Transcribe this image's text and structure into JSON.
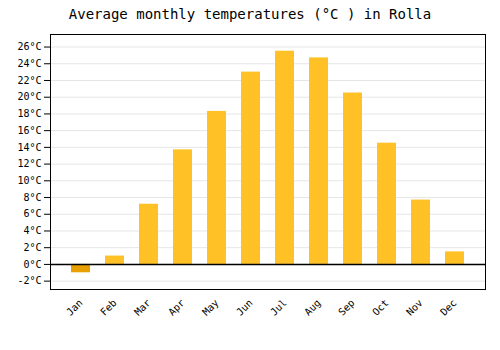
{
  "chart_data": {
    "type": "bar",
    "title": "Average monthly temperatures (°C ) in Rolla",
    "categories": [
      "Jan",
      "Feb",
      "Mar",
      "Apr",
      "May",
      "Jun",
      "Jul",
      "Aug",
      "Sep",
      "Oct",
      "Nov",
      "Dec"
    ],
    "values": [
      -1.0,
      1.0,
      7.2,
      13.7,
      18.3,
      23.0,
      25.5,
      24.7,
      20.5,
      14.5,
      7.7,
      1.5
    ],
    "colors": [
      "#E8A000",
      "#FFC125",
      "#FFC125",
      "#FFC125",
      "#FFC125",
      "#FFC125",
      "#FFC125",
      "#FFC125",
      "#FFC125",
      "#FFC125",
      "#FFC125",
      "#FFC125"
    ],
    "ylim": [
      -3.0,
      27.5
    ],
    "yticks": [
      {
        "value": -2,
        "label": "-2°C"
      },
      {
        "value": 0,
        "label": "0°C"
      },
      {
        "value": 2,
        "label": "2°C"
      },
      {
        "value": 4,
        "label": "4°C"
      },
      {
        "value": 6,
        "label": "6°C"
      },
      {
        "value": 8,
        "label": "8°C"
      },
      {
        "value": 10,
        "label": "10°C"
      },
      {
        "value": 12,
        "label": "12°C"
      },
      {
        "value": 14,
        "label": "14°C"
      },
      {
        "value": 16,
        "label": "16°C"
      },
      {
        "value": 18,
        "label": "18°C"
      },
      {
        "value": 20,
        "label": "20°C"
      },
      {
        "value": 22,
        "label": "22°C"
      },
      {
        "value": 24,
        "label": "24°C"
      },
      {
        "value": 26,
        "label": "26°C"
      }
    ],
    "grid": true
  }
}
